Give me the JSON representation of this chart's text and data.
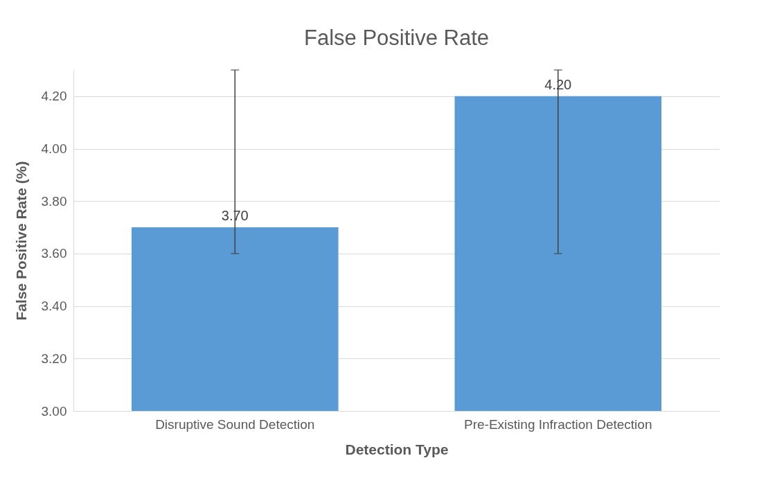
{
  "chart_data": {
    "type": "bar",
    "title": "False Positive Rate",
    "xlabel": "Detection Type",
    "ylabel": "False Positive Rate (%)",
    "categories": [
      "Disruptive Sound Detection",
      "Pre-Existing Infraction Detection"
    ],
    "values": [
      3.7,
      4.2
    ],
    "color": "#5b9bd5",
    "errors": [
      [
        3.6,
        4.3
      ],
      [
        3.6,
        4.3
      ]
    ],
    "value_labels": [
      "3.70",
      "4.20"
    ],
    "ylim": [
      3.0,
      4.3
    ],
    "yticks": [
      {
        "value": 3.0,
        "label": "3.00"
      },
      {
        "value": 3.2,
        "label": "3.20"
      },
      {
        "value": 3.4,
        "label": "3.40"
      },
      {
        "value": 3.6,
        "label": "3.60"
      },
      {
        "value": 3.8,
        "label": "3.80"
      },
      {
        "value": 4.0,
        "label": "4.00"
      },
      {
        "value": 4.2,
        "label": "4.20"
      }
    ],
    "grid": true
  }
}
